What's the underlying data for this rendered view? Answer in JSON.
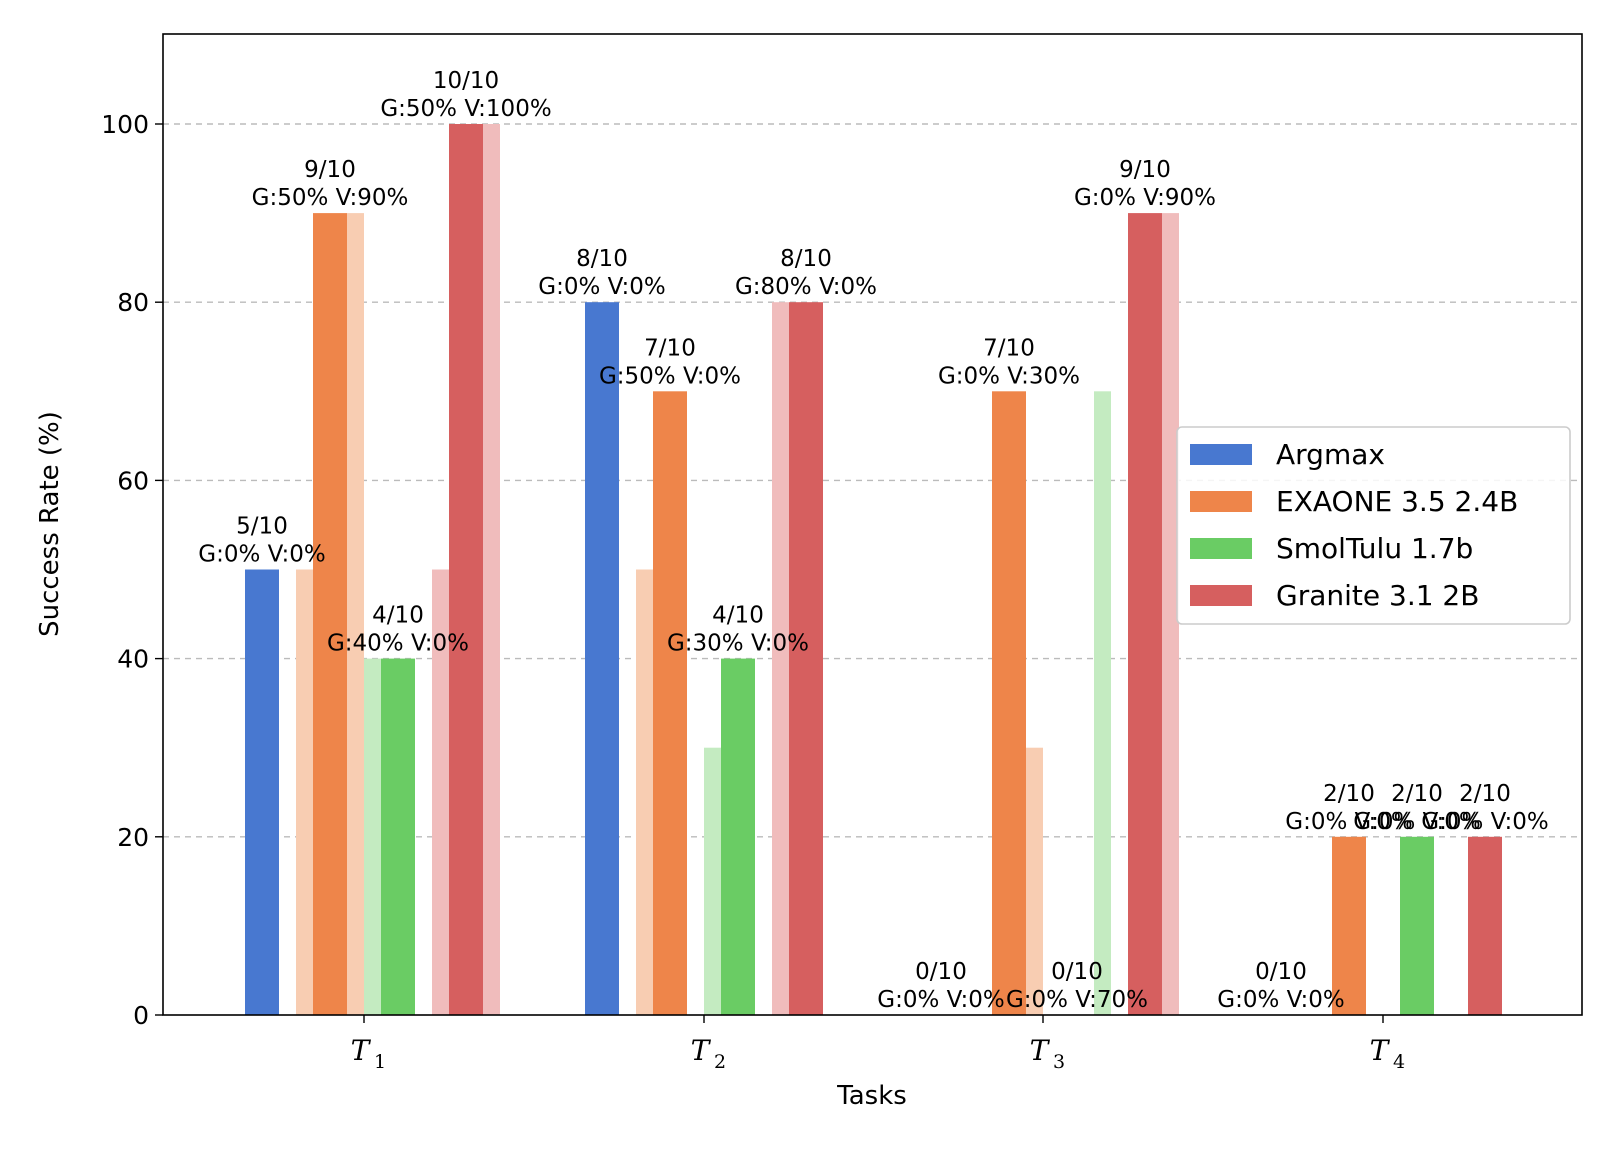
{
  "chart_data": {
    "type": "bar",
    "title": "",
    "xlabel": "Tasks",
    "ylabel": "Success Rate (%)",
    "ylim": [
      0,
      110
    ],
    "yticks": [
      0,
      20,
      40,
      60,
      80,
      100
    ],
    "grid": "y-dashed",
    "legend_position": "center-right",
    "categories": [
      {
        "main": "T",
        "sub": "1"
      },
      {
        "main": "T",
        "sub": "2"
      },
      {
        "main": "T",
        "sub": "3"
      },
      {
        "main": "T",
        "sub": "4"
      }
    ],
    "colors": {
      "Argmax": "#4878d0",
      "EXAONE 3.5 2.4B": "#ee854a",
      "SmolTulu 1.7b": "#6acc64",
      "Granite 3.1 2B": "#d65f5f",
      "EXAONE 3.5 2.4B_light": "#f8cdb2",
      "SmolTulu 1.7b_light": "#c4ebc1",
      "Granite 3.1 2B_light": "#f0bcbc"
    },
    "series": [
      {
        "name": "Argmax",
        "values": [
          50,
          80,
          0,
          0
        ],
        "labels": [
          "5/10",
          "8/10",
          "0/10",
          "0/10"
        ],
        "sublabels": [
          "G:0% V:0%",
          "G:0% V:0%",
          "G:0% V:0%",
          "G:0% V:0%"
        ]
      },
      {
        "name": "EXAONE 3.5 2.4B",
        "values": [
          90,
          70,
          70,
          20
        ],
        "greedy": [
          50,
          50,
          0,
          0
        ],
        "vote": [
          90,
          0,
          30,
          0
        ],
        "labels": [
          "9/10",
          "7/10",
          "7/10",
          "2/10"
        ],
        "sublabels": [
          "G:50% V:90%",
          "G:50% V:0%",
          "G:0% V:30%",
          "G:0% V:0%"
        ]
      },
      {
        "name": "SmolTulu 1.7b",
        "values": [
          40,
          40,
          0,
          20
        ],
        "greedy": [
          40,
          30,
          0,
          0
        ],
        "vote": [
          0,
          0,
          70,
          0
        ],
        "labels": [
          "4/10",
          "4/10",
          "0/10",
          "2/10"
        ],
        "sublabels": [
          "G:40% V:0%",
          "G:30% V:0%",
          "G:0% V:70%",
          "G:0% V:0%"
        ]
      },
      {
        "name": "Granite 3.1 2B",
        "values": [
          100,
          80,
          90,
          20
        ],
        "greedy": [
          50,
          80,
          0,
          0
        ],
        "vote": [
          100,
          0,
          90,
          0
        ],
        "labels": [
          "10/10",
          "8/10",
          "9/10",
          "2/10"
        ],
        "sublabels": [
          "G:50% V:100%",
          "G:80% V:0%",
          "G:0% V:90%",
          "G:0% V:0%"
        ]
      }
    ]
  }
}
